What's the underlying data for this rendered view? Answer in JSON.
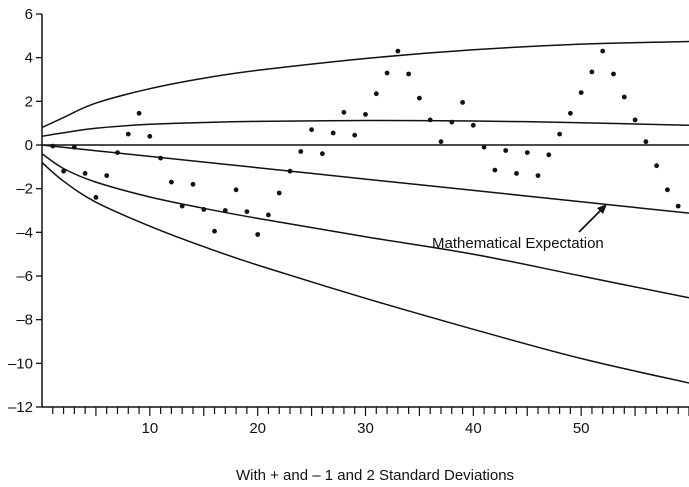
{
  "chart_data": {
    "type": "scatter",
    "title": "",
    "xlabel": "With + and – 1 and 2 Standard Deviations",
    "ylabel": "",
    "xlim": [
      0,
      60
    ],
    "ylim": [
      -12,
      6
    ],
    "x_ticks": [
      10,
      20,
      30,
      40,
      50
    ],
    "x_tick_labels": [
      "10",
      "20",
      "30",
      "40",
      "50"
    ],
    "y_ticks": [
      6,
      4,
      2,
      0,
      -2,
      -4,
      -6,
      -8,
      -10,
      -12
    ],
    "y_tick_labels": [
      "6",
      "4",
      "2",
      "0",
      "–2",
      "–4",
      "–6",
      "–8",
      "–10",
      "–12"
    ],
    "grid": false,
    "zero_line": true,
    "annotation": {
      "text": "Mathematical Expectation",
      "points_to_curve": "expectation"
    },
    "curves": [
      {
        "role": "plus-2-sd",
        "x": [
          0,
          2,
          5,
          10,
          15,
          20,
          30,
          40,
          50,
          60
        ],
        "y": [
          0.8,
          1.26,
          1.92,
          2.58,
          3.06,
          3.42,
          3.96,
          4.36,
          4.62,
          4.74
        ]
      },
      {
        "role": "plus-1-sd",
        "x": [
          0,
          2,
          5,
          10,
          15,
          20,
          30,
          40,
          50,
          60
        ],
        "y": [
          0.4,
          0.56,
          0.77,
          0.95,
          1.03,
          1.08,
          1.12,
          1.1,
          1.02,
          0.9
        ]
      },
      {
        "role": "expectation",
        "x": [
          0,
          5,
          10,
          20,
          30,
          40,
          50,
          60
        ],
        "y": [
          0,
          -0.26,
          -0.52,
          -1.04,
          -1.56,
          -2.08,
          -2.6,
          -3.12
        ]
      },
      {
        "role": "minus-1-sd",
        "x": [
          0,
          2,
          5,
          10,
          15,
          20,
          30,
          40,
          50,
          60
        ],
        "y": [
          -0.4,
          -1.08,
          -1.7,
          -2.38,
          -2.9,
          -3.36,
          -4.2,
          -5.0,
          -6.0,
          -7.0
        ]
      },
      {
        "role": "minus-2-sd",
        "x": [
          0,
          2,
          5,
          10,
          15,
          20,
          30,
          40,
          50,
          60
        ],
        "y": [
          -0.8,
          -1.66,
          -2.62,
          -3.72,
          -4.66,
          -5.5,
          -7.02,
          -8.44,
          -9.78,
          -10.9
        ]
      }
    ],
    "points": {
      "x": [
        1,
        2,
        3,
        4,
        5,
        6,
        7,
        8,
        9,
        10,
        11,
        12,
        13,
        14,
        15,
        16,
        17,
        18,
        19,
        20,
        21,
        22,
        23,
        24,
        25,
        26,
        27,
        28,
        29,
        30,
        31,
        32,
        33,
        34,
        35,
        36,
        37,
        38,
        39,
        40,
        41,
        42,
        43,
        44,
        45,
        46,
        47,
        48,
        49,
        50,
        51,
        52,
        53,
        54,
        55,
        56,
        57,
        58,
        59
      ],
      "y": [
        -0.05,
        -1.2,
        -0.1,
        -1.3,
        -2.4,
        -1.4,
        -0.35,
        0.5,
        1.45,
        0.4,
        -0.6,
        -1.7,
        -2.8,
        -1.8,
        -2.95,
        -3.95,
        -3.0,
        -2.05,
        -3.05,
        -4.1,
        -3.2,
        -2.2,
        -1.2,
        -0.3,
        0.7,
        -0.4,
        0.55,
        1.5,
        0.45,
        1.4,
        2.35,
        3.3,
        4.3,
        3.25,
        2.15,
        1.15,
        0.15,
        1.05,
        1.95,
        0.9,
        -0.1,
        -1.15,
        -0.25,
        -1.3,
        -0.35,
        -1.4,
        -0.45,
        0.5,
        1.45,
        2.4,
        3.35,
        4.3,
        3.25,
        2.2,
        1.15,
        0.15,
        -0.95,
        -2.05,
        -2.8
      ]
    }
  }
}
